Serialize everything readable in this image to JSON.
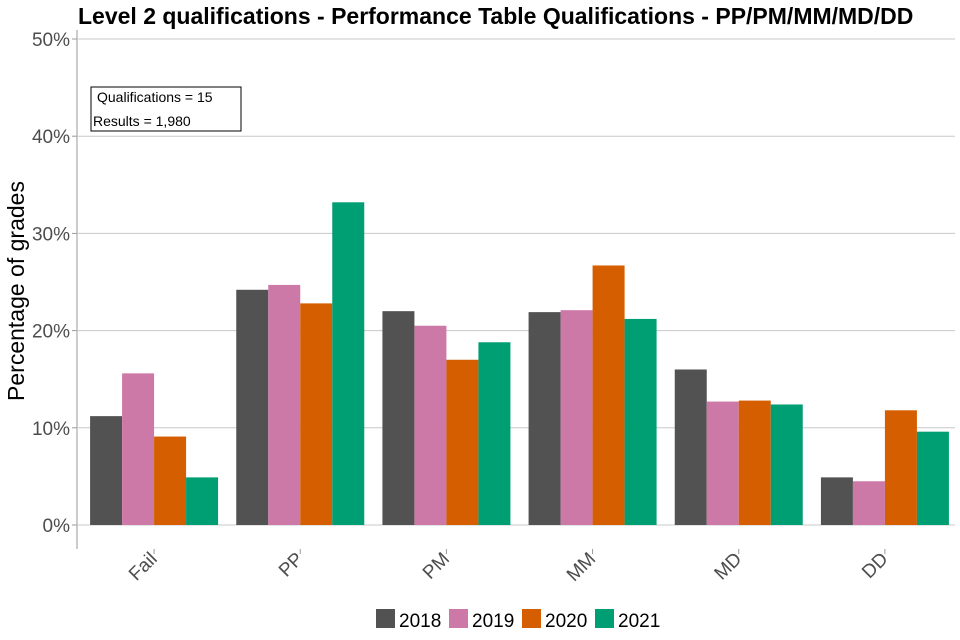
{
  "chart_data": {
    "type": "bar",
    "title": "Level 2 qualifications  - Performance Table Qualifications - PP/PM/MM/MD/DD",
    "xlabel": "",
    "ylabel": "Percentage of grades",
    "categories": [
      "Fail",
      "PP",
      "PM",
      "MM",
      "MD",
      "DD"
    ],
    "series": [
      {
        "name": "2018",
        "color": "#525252",
        "values": [
          11.2,
          24.2,
          22.0,
          21.9,
          16.0,
          4.9
        ]
      },
      {
        "name": "2019",
        "color": "#cc79a7",
        "values": [
          15.6,
          24.7,
          20.5,
          22.1,
          12.7,
          4.5
        ]
      },
      {
        "name": "2020",
        "color": "#d55e00",
        "values": [
          9.1,
          22.8,
          17.0,
          26.7,
          12.8,
          11.8
        ]
      },
      {
        "name": "2021",
        "color": "#009e73",
        "values": [
          4.9,
          33.2,
          18.8,
          21.2,
          12.4,
          9.6
        ]
      }
    ],
    "ylim": [
      0,
      50
    ],
    "yticks": [
      "0%",
      "10%",
      "20%",
      "30%",
      "40%",
      "50%"
    ],
    "ytick_values": [
      0,
      10,
      20,
      30,
      40,
      50
    ],
    "grid": "horizontal",
    "legend_position": "bottom",
    "annotations": [
      "Qualifications = 15",
      "Results = 1,980"
    ]
  }
}
